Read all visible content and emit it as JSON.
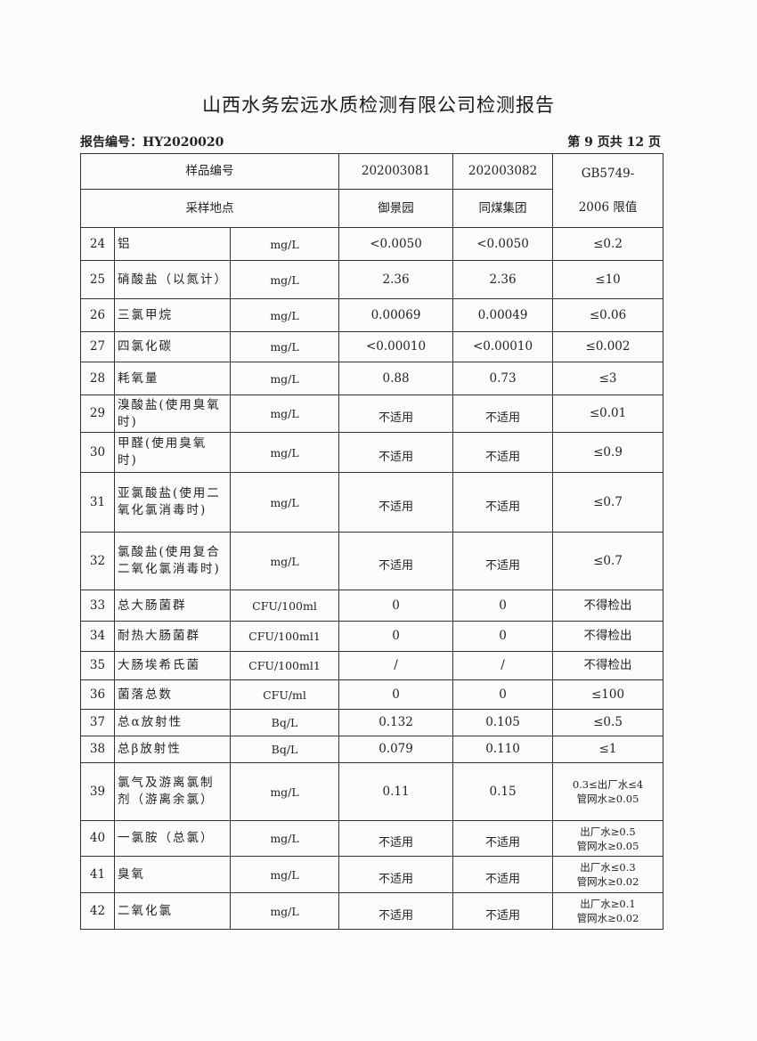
{
  "title": "山西水务宏远水质检测有限公司检测报告",
  "report_no": "报告编号：HY2020020",
  "page_info": "第 9 页共 12 页",
  "header": {
    "sample_no_label": "样品编号",
    "location_label": "采样地点",
    "samples": [
      {
        "no": "202003081",
        "location": "御景园"
      },
      {
        "no": "202003082",
        "location": "同煤集团"
      }
    ],
    "limit_label_1": "GB5749-",
    "limit_label_2": "2006 限值"
  },
  "rows": [
    {
      "no": "24",
      "name": "铝",
      "unit": "mg/L",
      "v1": "<0.0050",
      "v2": "<0.0050",
      "limit": "≤0.2"
    },
    {
      "no": "25",
      "name": "硝酸盐（以氮计）",
      "unit": "mg/L",
      "v1": "2.36",
      "v2": "2.36",
      "limit": "≤10"
    },
    {
      "no": "26",
      "name": "三氯甲烷",
      "unit": "mg/L",
      "v1": "0.00069",
      "v2": "0.00049",
      "limit": "≤0.06"
    },
    {
      "no": "27",
      "name": "四氯化碳",
      "unit": "mg/L",
      "v1": "<0.00010",
      "v2": "<0.00010",
      "limit": "≤0.002"
    },
    {
      "no": "28",
      "name": "耗氧量",
      "unit": "mg/L",
      "v1": "0.88",
      "v2": "0.73",
      "limit": "≤3"
    },
    {
      "no": "29",
      "name": "溴酸盐(使用臭氧时)",
      "unit": "mg/L",
      "v1": "不适用",
      "v2": "不适用",
      "limit": "≤0.01"
    },
    {
      "no": "30",
      "name": "甲醛(使用臭氧时)",
      "unit": "mg/L",
      "v1": "不适用",
      "v2": "不适用",
      "limit": "≤0.9"
    },
    {
      "no": "31",
      "name": "亚氯酸盐(使用二氧化氯消毒时)",
      "unit": "mg/L",
      "v1": "不适用",
      "v2": "不适用",
      "limit": "≤0.7"
    },
    {
      "no": "32",
      "name": "氯酸盐(使用复合二氧化氯消毒时)",
      "unit": "mg/L",
      "v1": "不适用",
      "v2": "不适用",
      "limit": "≤0.7"
    },
    {
      "no": "33",
      "name": "总大肠菌群",
      "unit": "CFU/100ml",
      "v1": "0",
      "v2": "0",
      "limit": "不得检出"
    },
    {
      "no": "34",
      "name": "耐热大肠菌群",
      "unit": "CFU/100ml1",
      "v1": "0",
      "v2": "0",
      "limit": "不得检出"
    },
    {
      "no": "35",
      "name": "大肠埃希氏菌",
      "unit": "CFU/100ml1",
      "v1": "/",
      "v2": "/",
      "limit": "不得检出"
    },
    {
      "no": "36",
      "name": "菌落总数",
      "unit": "CFU/ml",
      "v1": "0",
      "v2": "0",
      "limit": "≤100"
    },
    {
      "no": "37",
      "name": "总α放射性",
      "unit": "Bq/L",
      "v1": "0.132",
      "v2": "0.105",
      "limit": "≤0.5"
    },
    {
      "no": "38",
      "name": "总β放射性",
      "unit": "Bq/L",
      "v1": "0.079",
      "v2": "0.110",
      "limit": "≤1"
    },
    {
      "no": "39",
      "name": "氯气及游离氯制剂（游离余氯）",
      "unit": "mg/L",
      "v1": "0.11",
      "v2": "0.15",
      "limit": "0.3≤出厂水≤4",
      "limit2": "管网水≥0.05"
    },
    {
      "no": "40",
      "name": "一氯胺（总氯）",
      "unit": "mg/L",
      "v1": "不适用",
      "v2": "不适用",
      "limit": "出厂水≥0.5",
      "limit2": "管网水≥0.05"
    },
    {
      "no": "41",
      "name": "臭氧",
      "unit": "mg/L",
      "v1": "不适用",
      "v2": "不适用",
      "limit": "出厂水≤0.3",
      "limit2": "管网水≥0.02"
    },
    {
      "no": "42",
      "name": "二氧化氯",
      "unit": "mg/L",
      "v1": "不适用",
      "v2": "不适用",
      "limit": "出厂水≥0.1",
      "limit2": "管网水≥0.02"
    }
  ]
}
